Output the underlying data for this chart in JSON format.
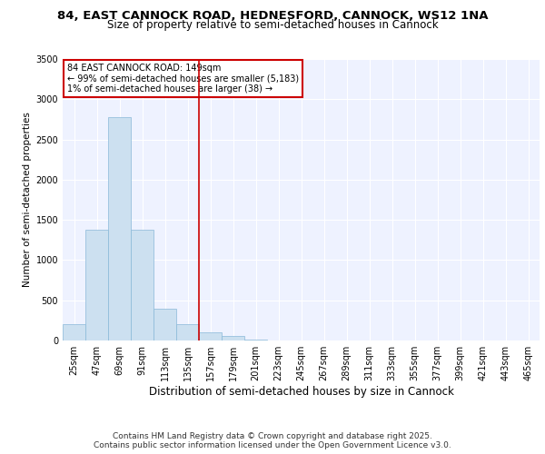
{
  "title_line1": "84, EAST CANNOCK ROAD, HEDNESFORD, CANNOCK, WS12 1NA",
  "title_line2": "Size of property relative to semi-detached houses in Cannock",
  "xlabel": "Distribution of semi-detached houses by size in Cannock",
  "ylabel": "Number of semi-detached properties",
  "categories": [
    "25sqm",
    "47sqm",
    "69sqm",
    "91sqm",
    "113sqm",
    "135sqm",
    "157sqm",
    "179sqm",
    "201sqm",
    "223sqm",
    "245sqm",
    "267sqm",
    "289sqm",
    "311sqm",
    "333sqm",
    "355sqm",
    "377sqm",
    "399sqm",
    "421sqm",
    "443sqm",
    "465sqm"
  ],
  "values": [
    200,
    1380,
    2780,
    1380,
    400,
    200,
    100,
    55,
    15,
    5,
    2,
    0,
    0,
    0,
    0,
    0,
    0,
    0,
    0,
    0,
    0
  ],
  "bar_color": "#cce0f0",
  "bar_edge_color": "#89b8d8",
  "vline_color": "#cc0000",
  "vline_index": 6,
  "annotation_box_text": "84 EAST CANNOCK ROAD: 149sqm\n← 99% of semi-detached houses are smaller (5,183)\n1% of semi-detached houses are larger (38) →",
  "annotation_box_color": "#cc0000",
  "ylim": [
    0,
    3500
  ],
  "yticks": [
    0,
    500,
    1000,
    1500,
    2000,
    2500,
    3000,
    3500
  ],
  "bg_color": "#eef2ff",
  "grid_color": "#ffffff",
  "footer_text": "Contains HM Land Registry data © Crown copyright and database right 2025.\nContains public sector information licensed under the Open Government Licence v3.0.",
  "title_fontsize": 9.5,
  "subtitle_fontsize": 8.5,
  "ylabel_fontsize": 7.5,
  "xlabel_fontsize": 8.5,
  "tick_fontsize": 7,
  "annot_fontsize": 7,
  "footer_fontsize": 6.5
}
